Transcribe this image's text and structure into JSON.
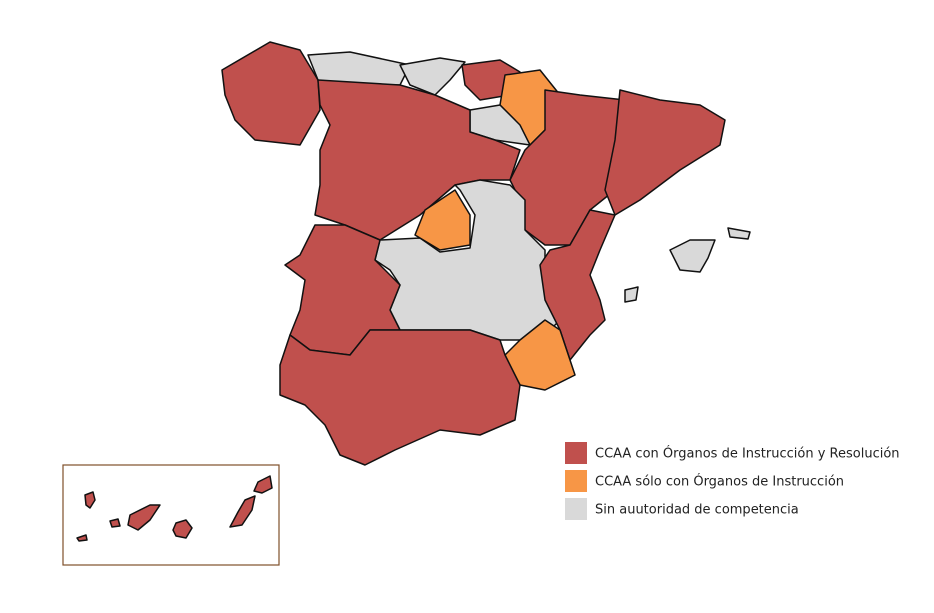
{
  "legend": {
    "items": [
      {
        "label": "CCAA con Órganos de Instrucción y Resolución",
        "color": "#c0504d"
      },
      {
        "label": "CCAA sólo con Órganos de Instrucción",
        "color": "#f79646"
      },
      {
        "label": "Sin auutoridad de competencia",
        "color": "#d9d9d9"
      }
    ]
  }
}
